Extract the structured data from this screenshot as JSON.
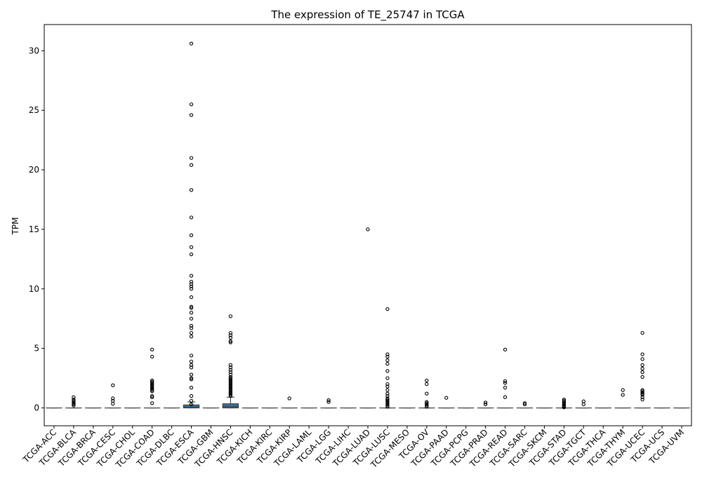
{
  "chart_data": {
    "type": "box",
    "title": "The expression of TE_25747 in TCGA",
    "xlabel": "",
    "ylabel": "TPM",
    "ylim": [
      -1.5,
      32.2
    ],
    "yticks": [
      0,
      5,
      10,
      15,
      20,
      25,
      30
    ],
    "grid": false,
    "box_color": "#3a6f93",
    "categories": [
      "TCGA-ACC",
      "TCGA-BLCA",
      "TCGA-BRCA",
      "TCGA-CESC",
      "TCGA-CHOL",
      "TCGA-COAD",
      "TCGA-DLBC",
      "TCGA-ESCA",
      "TCGA-GBM",
      "TCGA-HNSC",
      "TCGA-KICH",
      "TCGA-KIRC",
      "TCGA-KIRP",
      "TCGA-LAML",
      "TCGA-LGG",
      "TCGA-LIHC",
      "TCGA-LUAD",
      "TCGA-LUSC",
      "TCGA-MESO",
      "TCGA-OV",
      "TCGA-PAAD",
      "TCGA-PCPG",
      "TCGA-PRAD",
      "TCGA-READ",
      "TCGA-SARC",
      "TCGA-SKCM",
      "TCGA-STAD",
      "TCGA-TGCT",
      "TCGA-THCA",
      "TCGA-THYM",
      "TCGA-UCEC",
      "TCGA-UCS",
      "TCGA-UVM"
    ],
    "boxes": [
      {
        "q1": 0,
        "median": 0,
        "q3": 0,
        "whisker_low": 0,
        "whisker_high": 0,
        "outliers": []
      },
      {
        "q1": 0,
        "median": 0,
        "q3": 0,
        "whisker_low": 0,
        "whisker_high": 0,
        "outliers": [
          0.2,
          0.3,
          0.4,
          0.5,
          0.6,
          0.7,
          0.9
        ]
      },
      {
        "q1": 0,
        "median": 0,
        "q3": 0,
        "whisker_low": 0,
        "whisker_high": 0,
        "outliers": []
      },
      {
        "q1": 0,
        "median": 0,
        "q3": 0,
        "whisker_low": 0,
        "whisker_high": 0,
        "outliers": [
          0.35,
          0.6,
          0.8,
          1.9
        ]
      },
      {
        "q1": 0,
        "median": 0,
        "q3": 0,
        "whisker_low": 0,
        "whisker_high": 0,
        "outliers": []
      },
      {
        "q1": 0,
        "median": 0,
        "q3": 0,
        "whisker_low": 0,
        "whisker_high": 0,
        "outliers": [
          0.4,
          0.9,
          1.0,
          1.4,
          1.5,
          1.6,
          1.7,
          1.8,
          1.9,
          2.0,
          2.1,
          2.2,
          2.3,
          4.3,
          4.9
        ]
      },
      {
        "q1": 0,
        "median": 0,
        "q3": 0,
        "whisker_low": 0,
        "whisker_high": 0,
        "outliers": []
      },
      {
        "q1": 0,
        "median": 0.05,
        "q3": 0.25,
        "whisker_low": 0,
        "whisker_high": 0.5,
        "outliers": [
          0.3,
          0.6,
          1.0,
          1.7,
          2.4,
          2.5,
          2.8,
          3.4,
          3.6,
          3.9,
          4.4,
          6.0,
          6.3,
          6.7,
          6.9,
          7.5,
          8.0,
          8.4,
          8.5,
          9.3,
          10.0,
          10.2,
          10.4,
          10.6,
          11.1,
          12.9,
          13.5,
          14.5,
          16.0,
          18.3,
          20.4,
          21.0,
          24.6,
          25.5,
          30.6
        ]
      },
      {
        "q1": 0,
        "median": 0,
        "q3": 0,
        "whisker_low": 0,
        "whisker_high": 0,
        "outliers": []
      },
      {
        "q1": 0,
        "median": 0.1,
        "q3": 0.35,
        "whisker_low": 0,
        "whisker_high": 0.9,
        "outliers": [
          1.0,
          1.1,
          1.2,
          1.3,
          1.4,
          1.5,
          1.6,
          1.7,
          1.8,
          1.9,
          2.0,
          2.1,
          2.2,
          2.3,
          2.4,
          2.5,
          2.6,
          2.8,
          3.0,
          3.2,
          3.4,
          3.6,
          5.5,
          5.6,
          5.9,
          6.1,
          6.3,
          7.7
        ]
      },
      {
        "q1": 0,
        "median": 0,
        "q3": 0,
        "whisker_low": 0,
        "whisker_high": 0,
        "outliers": []
      },
      {
        "q1": 0,
        "median": 0,
        "q3": 0,
        "whisker_low": 0,
        "whisker_high": 0,
        "outliers": []
      },
      {
        "q1": 0,
        "median": 0,
        "q3": 0,
        "whisker_low": 0,
        "whisker_high": 0,
        "outliers": [
          0.8
        ]
      },
      {
        "q1": 0,
        "median": 0,
        "q3": 0,
        "whisker_low": 0,
        "whisker_high": 0,
        "outliers": []
      },
      {
        "q1": 0,
        "median": 0,
        "q3": 0,
        "whisker_low": 0,
        "whisker_high": 0,
        "outliers": [
          0.5,
          0.65
        ]
      },
      {
        "q1": 0,
        "median": 0,
        "q3": 0,
        "whisker_low": 0,
        "whisker_high": 0,
        "outliers": []
      },
      {
        "q1": 0,
        "median": 0,
        "q3": 0,
        "whisker_low": 0,
        "whisker_high": 0,
        "outliers": [
          15.0
        ]
      },
      {
        "q1": 0,
        "median": 0,
        "q3": 0,
        "whisker_low": 0,
        "whisker_high": 0,
        "outliers": [
          0.1,
          0.2,
          0.3,
          0.4,
          0.5,
          0.6,
          0.7,
          0.8,
          1.0,
          1.2,
          1.5,
          1.8,
          2.0,
          2.5,
          3.1,
          3.7,
          4.0,
          4.3,
          4.5,
          8.3
        ]
      },
      {
        "q1": 0,
        "median": 0,
        "q3": 0,
        "whisker_low": 0,
        "whisker_high": 0,
        "outliers": []
      },
      {
        "q1": 0,
        "median": 0,
        "q3": 0,
        "whisker_low": 0,
        "whisker_high": 0,
        "outliers": [
          0.1,
          0.2,
          0.3,
          0.4,
          0.5,
          1.2,
          2.0,
          2.3
        ]
      },
      {
        "q1": 0,
        "median": 0,
        "q3": 0,
        "whisker_low": 0,
        "whisker_high": 0,
        "outliers": [
          0.85
        ]
      },
      {
        "q1": 0,
        "median": 0,
        "q3": 0,
        "whisker_low": 0,
        "whisker_high": 0,
        "outliers": []
      },
      {
        "q1": 0,
        "median": 0,
        "q3": 0,
        "whisker_low": 0,
        "whisker_high": 0,
        "outliers": [
          0.3,
          0.45
        ]
      },
      {
        "q1": 0,
        "median": 0,
        "q3": 0,
        "whisker_low": 0,
        "whisker_high": 0,
        "outliers": [
          0.9,
          1.7,
          2.1,
          2.25,
          4.9
        ]
      },
      {
        "q1": 0,
        "median": 0,
        "q3": 0,
        "whisker_low": 0,
        "whisker_high": 0,
        "outliers": [
          0.3,
          0.4
        ]
      },
      {
        "q1": 0,
        "median": 0,
        "q3": 0,
        "whisker_low": 0,
        "whisker_high": 0,
        "outliers": []
      },
      {
        "q1": 0,
        "median": 0,
        "q3": 0,
        "whisker_low": 0,
        "whisker_high": 0,
        "outliers": [
          0.05,
          0.1,
          0.15,
          0.2,
          0.3,
          0.4,
          0.5,
          0.6,
          0.7
        ]
      },
      {
        "q1": 0,
        "median": 0,
        "q3": 0,
        "whisker_low": 0,
        "whisker_high": 0,
        "outliers": [
          0.3,
          0.55
        ]
      },
      {
        "q1": 0,
        "median": 0,
        "q3": 0,
        "whisker_low": 0,
        "whisker_high": 0,
        "outliers": []
      },
      {
        "q1": 0,
        "median": 0,
        "q3": 0,
        "whisker_low": 0,
        "whisker_high": 0,
        "outliers": [
          1.1,
          1.5
        ]
      },
      {
        "q1": 0,
        "median": 0,
        "q3": 0,
        "whisker_low": 0,
        "whisker_high": 0,
        "outliers": [
          0.7,
          0.9,
          1.1,
          1.2,
          1.3,
          1.4,
          1.5,
          2.6,
          3.0,
          3.3,
          3.6,
          4.1,
          4.5,
          6.3
        ]
      },
      {
        "q1": 0,
        "median": 0,
        "q3": 0,
        "whisker_low": 0,
        "whisker_high": 0,
        "outliers": []
      },
      {
        "q1": 0,
        "median": 0,
        "q3": 0,
        "whisker_low": 0,
        "whisker_high": 0,
        "outliers": []
      }
    ]
  }
}
